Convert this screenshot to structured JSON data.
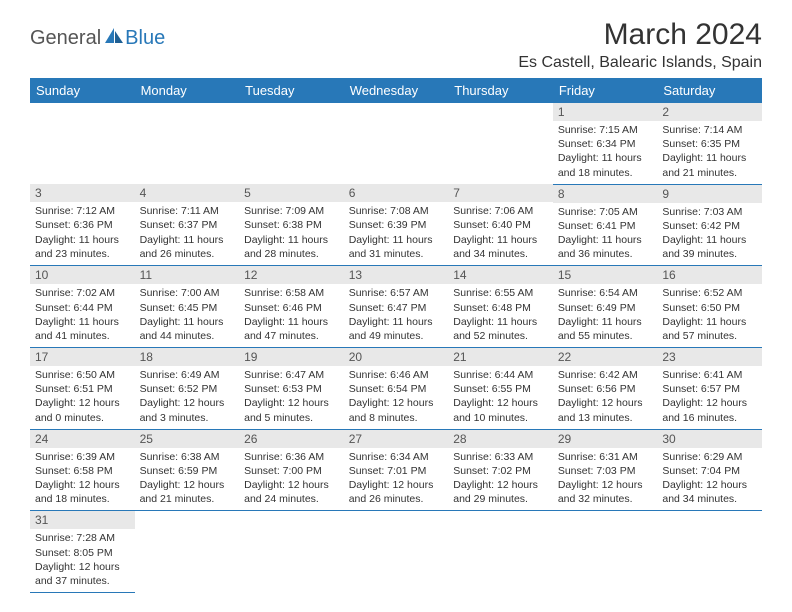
{
  "brand": {
    "name1": "General",
    "name2": "Blue"
  },
  "title": "March 2024",
  "location": "Es Castell, Balearic Islands, Spain",
  "colors": {
    "header_bg": "#2878b8",
    "header_text": "#ffffff",
    "daynum_bg": "#e8e8e8",
    "text": "#333333",
    "border": "#2878b8"
  },
  "weekdays": [
    "Sunday",
    "Monday",
    "Tuesday",
    "Wednesday",
    "Thursday",
    "Friday",
    "Saturday"
  ],
  "weeks": [
    [
      null,
      null,
      null,
      null,
      null,
      {
        "n": "1",
        "sr": "Sunrise: 7:15 AM",
        "ss": "Sunset: 6:34 PM",
        "dl": "Daylight: 11 hours and 18 minutes."
      },
      {
        "n": "2",
        "sr": "Sunrise: 7:14 AM",
        "ss": "Sunset: 6:35 PM",
        "dl": "Daylight: 11 hours and 21 minutes."
      }
    ],
    [
      {
        "n": "3",
        "sr": "Sunrise: 7:12 AM",
        "ss": "Sunset: 6:36 PM",
        "dl": "Daylight: 11 hours and 23 minutes."
      },
      {
        "n": "4",
        "sr": "Sunrise: 7:11 AM",
        "ss": "Sunset: 6:37 PM",
        "dl": "Daylight: 11 hours and 26 minutes."
      },
      {
        "n": "5",
        "sr": "Sunrise: 7:09 AM",
        "ss": "Sunset: 6:38 PM",
        "dl": "Daylight: 11 hours and 28 minutes."
      },
      {
        "n": "6",
        "sr": "Sunrise: 7:08 AM",
        "ss": "Sunset: 6:39 PM",
        "dl": "Daylight: 11 hours and 31 minutes."
      },
      {
        "n": "7",
        "sr": "Sunrise: 7:06 AM",
        "ss": "Sunset: 6:40 PM",
        "dl": "Daylight: 11 hours and 34 minutes."
      },
      {
        "n": "8",
        "sr": "Sunrise: 7:05 AM",
        "ss": "Sunset: 6:41 PM",
        "dl": "Daylight: 11 hours and 36 minutes."
      },
      {
        "n": "9",
        "sr": "Sunrise: 7:03 AM",
        "ss": "Sunset: 6:42 PM",
        "dl": "Daylight: 11 hours and 39 minutes."
      }
    ],
    [
      {
        "n": "10",
        "sr": "Sunrise: 7:02 AM",
        "ss": "Sunset: 6:44 PM",
        "dl": "Daylight: 11 hours and 41 minutes."
      },
      {
        "n": "11",
        "sr": "Sunrise: 7:00 AM",
        "ss": "Sunset: 6:45 PM",
        "dl": "Daylight: 11 hours and 44 minutes."
      },
      {
        "n": "12",
        "sr": "Sunrise: 6:58 AM",
        "ss": "Sunset: 6:46 PM",
        "dl": "Daylight: 11 hours and 47 minutes."
      },
      {
        "n": "13",
        "sr": "Sunrise: 6:57 AM",
        "ss": "Sunset: 6:47 PM",
        "dl": "Daylight: 11 hours and 49 minutes."
      },
      {
        "n": "14",
        "sr": "Sunrise: 6:55 AM",
        "ss": "Sunset: 6:48 PM",
        "dl": "Daylight: 11 hours and 52 minutes."
      },
      {
        "n": "15",
        "sr": "Sunrise: 6:54 AM",
        "ss": "Sunset: 6:49 PM",
        "dl": "Daylight: 11 hours and 55 minutes."
      },
      {
        "n": "16",
        "sr": "Sunrise: 6:52 AM",
        "ss": "Sunset: 6:50 PM",
        "dl": "Daylight: 11 hours and 57 minutes."
      }
    ],
    [
      {
        "n": "17",
        "sr": "Sunrise: 6:50 AM",
        "ss": "Sunset: 6:51 PM",
        "dl": "Daylight: 12 hours and 0 minutes."
      },
      {
        "n": "18",
        "sr": "Sunrise: 6:49 AM",
        "ss": "Sunset: 6:52 PM",
        "dl": "Daylight: 12 hours and 3 minutes."
      },
      {
        "n": "19",
        "sr": "Sunrise: 6:47 AM",
        "ss": "Sunset: 6:53 PM",
        "dl": "Daylight: 12 hours and 5 minutes."
      },
      {
        "n": "20",
        "sr": "Sunrise: 6:46 AM",
        "ss": "Sunset: 6:54 PM",
        "dl": "Daylight: 12 hours and 8 minutes."
      },
      {
        "n": "21",
        "sr": "Sunrise: 6:44 AM",
        "ss": "Sunset: 6:55 PM",
        "dl": "Daylight: 12 hours and 10 minutes."
      },
      {
        "n": "22",
        "sr": "Sunrise: 6:42 AM",
        "ss": "Sunset: 6:56 PM",
        "dl": "Daylight: 12 hours and 13 minutes."
      },
      {
        "n": "23",
        "sr": "Sunrise: 6:41 AM",
        "ss": "Sunset: 6:57 PM",
        "dl": "Daylight: 12 hours and 16 minutes."
      }
    ],
    [
      {
        "n": "24",
        "sr": "Sunrise: 6:39 AM",
        "ss": "Sunset: 6:58 PM",
        "dl": "Daylight: 12 hours and 18 minutes."
      },
      {
        "n": "25",
        "sr": "Sunrise: 6:38 AM",
        "ss": "Sunset: 6:59 PM",
        "dl": "Daylight: 12 hours and 21 minutes."
      },
      {
        "n": "26",
        "sr": "Sunrise: 6:36 AM",
        "ss": "Sunset: 7:00 PM",
        "dl": "Daylight: 12 hours and 24 minutes."
      },
      {
        "n": "27",
        "sr": "Sunrise: 6:34 AM",
        "ss": "Sunset: 7:01 PM",
        "dl": "Daylight: 12 hours and 26 minutes."
      },
      {
        "n": "28",
        "sr": "Sunrise: 6:33 AM",
        "ss": "Sunset: 7:02 PM",
        "dl": "Daylight: 12 hours and 29 minutes."
      },
      {
        "n": "29",
        "sr": "Sunrise: 6:31 AM",
        "ss": "Sunset: 7:03 PM",
        "dl": "Daylight: 12 hours and 32 minutes."
      },
      {
        "n": "30",
        "sr": "Sunrise: 6:29 AM",
        "ss": "Sunset: 7:04 PM",
        "dl": "Daylight: 12 hours and 34 minutes."
      }
    ],
    [
      {
        "n": "31",
        "sr": "Sunrise: 7:28 AM",
        "ss": "Sunset: 8:05 PM",
        "dl": "Daylight: 12 hours and 37 minutes."
      },
      null,
      null,
      null,
      null,
      null,
      null
    ]
  ]
}
